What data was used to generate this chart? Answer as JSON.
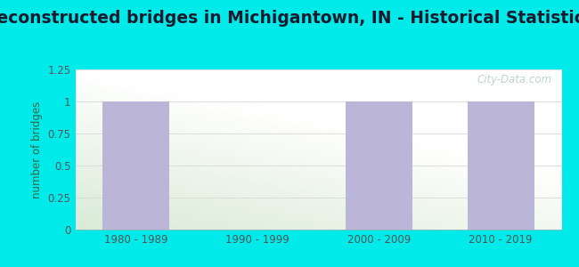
{
  "title": "Reconstructed bridges in Michigantown, IN - Historical Statistics",
  "categories": [
    "1980 - 1989",
    "1990 - 1999",
    "2000 - 2009",
    "2010 - 2019"
  ],
  "values": [
    1,
    0,
    1,
    1
  ],
  "bar_color": "#bbb5d8",
  "ylabel": "number of bridges",
  "ylim": [
    0,
    1.25
  ],
  "yticks": [
    0,
    0.25,
    0.5,
    0.75,
    1,
    1.25
  ],
  "background_outer": "#00eaea",
  "bg_top_left": "#f0f8ee",
  "bg_top_right": "#f8f8f8",
  "bg_bottom_left": "#d8f0d0",
  "bg_bottom_right": "#f0f8f0",
  "title_fontsize": 13.5,
  "title_fontweight": "bold",
  "title_color": "#1a1a2e",
  "watermark": "City-Data.com",
  "grid_color": "#d8d8d8",
  "tick_color": "#555555",
  "ylabel_color": "#336644"
}
